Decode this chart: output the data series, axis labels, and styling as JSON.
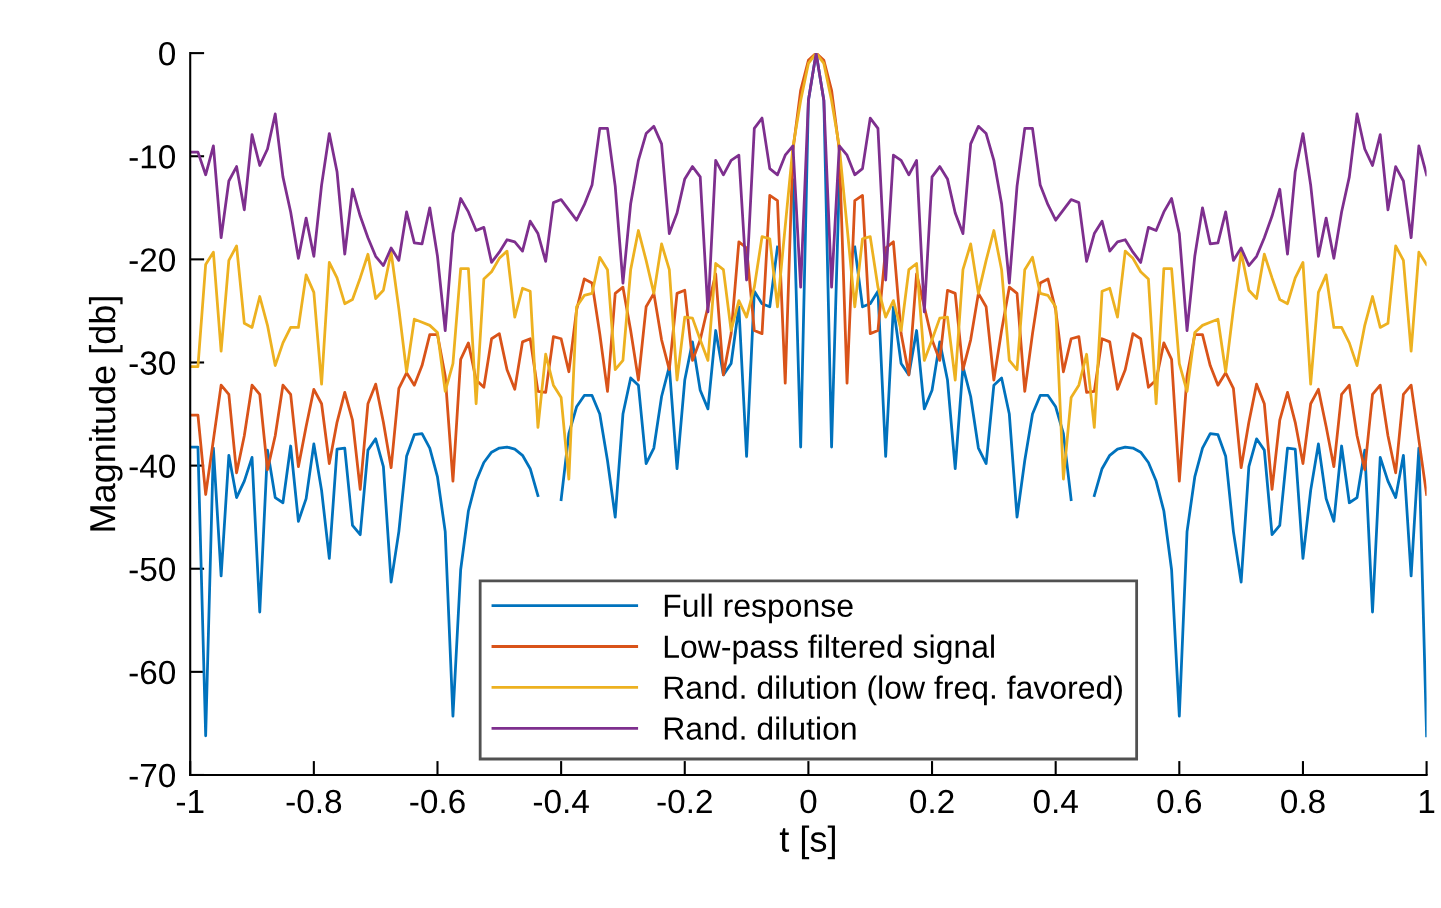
{
  "chart_data": {
    "type": "line",
    "xlabel": "t [s]",
    "ylabel": "Magnitude [db]",
    "x": [
      -1,
      -0.9875,
      -0.975,
      -0.9625,
      -0.95,
      -0.9375,
      -0.925,
      -0.9125,
      -0.9,
      -0.8875,
      -0.875,
      -0.8625,
      -0.85,
      -0.8375,
      -0.825,
      -0.8125,
      -0.8,
      -0.7875,
      -0.775,
      -0.7625,
      -0.75,
      -0.7375,
      -0.725,
      -0.7125,
      -0.7,
      -0.6875,
      -0.675,
      -0.6625,
      -0.65,
      -0.6375,
      -0.625,
      -0.6125,
      -0.6,
      -0.5875,
      -0.575,
      -0.5625,
      -0.55,
      -0.5375,
      -0.525,
      -0.5125,
      -0.5,
      -0.4875,
      -0.475,
      -0.4625,
      -0.45,
      -0.4375,
      -0.425,
      -0.4125,
      -0.4,
      -0.3875,
      -0.375,
      -0.3625,
      -0.35,
      -0.3375,
      -0.325,
      -0.3125,
      -0.3,
      -0.2875,
      -0.275,
      -0.2625,
      -0.25,
      -0.2375,
      -0.225,
      -0.2125,
      -0.2,
      -0.1875,
      -0.175,
      -0.1625,
      -0.15,
      -0.1375,
      -0.125,
      -0.1125,
      -0.1,
      -0.0875,
      -0.075,
      -0.0625,
      -0.05,
      -0.0375,
      -0.025,
      -0.0125,
      0,
      0.0125,
      0.025,
      0.0375,
      0.05,
      0.0625,
      0.075,
      0.0875,
      0.1,
      0.1125,
      0.125,
      0.1375,
      0.15,
      0.1625,
      0.175,
      0.1875,
      0.2,
      0.2125,
      0.225,
      0.2375,
      0.25,
      0.2625,
      0.275,
      0.2875,
      0.3,
      0.3125,
      0.325,
      0.3375,
      0.35,
      0.3625,
      0.375,
      0.3875,
      0.4,
      0.4125,
      0.425,
      0.4375,
      0.45,
      0.4625,
      0.475,
      0.4875,
      0.5,
      0.5125,
      0.525,
      0.5375,
      0.55,
      0.5625,
      0.575,
      0.5875,
      0.6,
      0.6125,
      0.625,
      0.6375,
      0.65,
      0.6625,
      0.675,
      0.6875,
      0.7,
      0.7125,
      0.725,
      0.7375,
      0.75,
      0.7625,
      0.775,
      0.7875,
      0.8,
      0.8125,
      0.825,
      0.8375,
      0.85,
      0.8625,
      0.875,
      0.8875,
      0.9,
      0.9125,
      0.925,
      0.9375,
      0.95,
      0.9625,
      0.975,
      0.9875,
      1
    ],
    "series": [
      {
        "name": "Full response",
        "color": "#0072bd",
        "values": [
          -38.2,
          -38.2,
          -66.2,
          -38.3,
          -50.7,
          -39.0,
          -43.1,
          -41.5,
          -39.2,
          -54.2,
          -38.5,
          -43.1,
          -43.6,
          -38.1,
          -45.4,
          -43.2,
          -37.9,
          -42.4,
          -49.0,
          -38.4,
          -38.3,
          -45.8,
          -46.7,
          -38.5,
          -37.4,
          -40.1,
          -51.3,
          -46.4,
          -39.1,
          -37.0,
          -36.9,
          -38.3,
          -41.1,
          -46.4,
          -64.3,
          -50.1,
          -44.4,
          -41.5,
          -39.7,
          -38.7,
          -38.3,
          -38.2,
          -38.4,
          -39.0,
          -40.3,
          -42.9,
          null,
          null,
          -43.3,
          -36.9,
          -34.3,
          -33.2,
          -33.2,
          -35.0,
          -39.5,
          -45.0,
          -35.0,
          -31.5,
          -32.2,
          -39.8,
          -38.3,
          -33.3,
          -30.4,
          -40.3,
          -31.7,
          -28.0,
          -32.7,
          -34.5,
          -26.9,
          -31.2,
          -30.1,
          -24.6,
          -39.1,
          -23.1,
          -24.3,
          -24.6,
          -18.8,
          null,
          -12.3,
          -38.2,
          -4.6,
          0,
          -4.6,
          -38.2,
          -12.3,
          null,
          -18.8,
          -24.6,
          -24.3,
          -23.1,
          -39.1,
          -24.6,
          -30.1,
          -31.2,
          -26.9,
          -34.5,
          -32.7,
          -28.0,
          -31.7,
          -40.3,
          -30.4,
          -33.3,
          -38.3,
          -39.8,
          -32.2,
          -31.5,
          -35.0,
          -45.0,
          -39.5,
          -35.0,
          -33.2,
          -33.2,
          -34.3,
          -36.9,
          -43.3,
          null,
          null,
          -42.9,
          -40.3,
          -39.0,
          -38.4,
          -38.2,
          -38.3,
          -38.7,
          -39.7,
          -41.5,
          -44.4,
          -50.1,
          -64.3,
          -46.4,
          -41.1,
          -38.3,
          -36.9,
          -37.0,
          -39.1,
          -46.4,
          -51.3,
          -40.1,
          -37.4,
          -38.5,
          -46.7,
          -45.8,
          -38.3,
          -38.4,
          -49.0,
          -42.4,
          -37.9,
          -43.2,
          -45.4,
          -38.1,
          -43.6,
          -43.1,
          -38.5,
          -54.2,
          -39.2,
          -41.5,
          -43.1,
          -39.0,
          -50.7,
          -38.3,
          -66.2
        ]
      },
      {
        "name": "Low-pass filtered signal",
        "color": "#d95319",
        "values": [
          -35.1,
          -35.1,
          -42.8,
          -37.5,
          -32.2,
          -33.1,
          -40.7,
          -37.1,
          -32.2,
          -33.1,
          -40.4,
          -37.1,
          -32.2,
          -33.1,
          -40.1,
          -36.2,
          -32.6,
          -34.0,
          -39.8,
          -35.8,
          -32.9,
          -35.6,
          -42.3,
          -34.0,
          -32.1,
          -35.8,
          -40.2,
          -32.5,
          -31.0,
          -32.2,
          -30.3,
          -27.3,
          -27.3,
          -31.3,
          -41.5,
          -29.7,
          -28.1,
          -31.7,
          -32.4,
          -27.7,
          -27.2,
          -30.7,
          -32.6,
          -28.0,
          -27.7,
          -32.8,
          -32.9,
          -27.5,
          -27.7,
          -30.9,
          -24.9,
          -21.9,
          -22.3,
          -27.2,
          -32.8,
          -23.3,
          -22.7,
          -26.9,
          -31.7,
          -24.6,
          -23.3,
          -27.8,
          -30.7,
          -23.3,
          -23.0,
          -29.8,
          -27.8,
          -24.6,
          -21.4,
          -31.2,
          -27.2,
          -18.3,
          -18.9,
          -26.9,
          -27.2,
          -13.8,
          -14.3,
          -32.0,
          -9.4,
          -3.6,
          -0.7,
          0,
          -0.7,
          -3.6,
          -9.4,
          -32.0,
          -14.3,
          -13.8,
          -27.2,
          -26.9,
          -18.9,
          -18.3,
          -27.2,
          -31.2,
          -21.4,
          -24.6,
          -27.8,
          -29.8,
          -23.0,
          -23.3,
          -30.7,
          -27.8,
          -23.3,
          -24.6,
          -31.7,
          -26.9,
          -22.7,
          -23.3,
          -32.8,
          -27.2,
          -22.3,
          -21.9,
          -24.9,
          -30.9,
          -27.7,
          -27.5,
          -32.9,
          -32.8,
          -27.7,
          -28.0,
          -32.6,
          -30.7,
          -27.2,
          -27.7,
          -32.4,
          -31.7,
          -28.1,
          -29.7,
          -41.5,
          -31.3,
          -27.3,
          -27.3,
          -30.3,
          -32.2,
          -31.0,
          -32.5,
          -40.2,
          -35.8,
          -32.1,
          -34.0,
          -42.3,
          -35.6,
          -32.9,
          -35.8,
          -39.8,
          -34.0,
          -32.6,
          -36.2,
          -40.1,
          -33.1,
          -32.2,
          -37.1,
          -40.4,
          -33.1,
          -32.2,
          -37.1,
          -40.7,
          -33.1,
          -32.2,
          -37.5,
          -42.8
        ]
      },
      {
        "name": "Rand. dilution (low freq. favored)",
        "color": "#edb120",
        "values": [
          -30.4,
          -30.4,
          -20.5,
          -19.3,
          -28.9,
          -20.1,
          -18.7,
          -26.2,
          -26.6,
          -23.6,
          -26.4,
          -30.3,
          -28.1,
          -26.6,
          -26.6,
          -21.5,
          -23.2,
          -32.1,
          -20.3,
          -21.8,
          -24.3,
          -23.9,
          -21.8,
          -19.5,
          -23.8,
          -23.0,
          -19.3,
          -24.8,
          -30.9,
          -25.8,
          -26.1,
          -26.4,
          -27.1,
          -32.8,
          -30.1,
          -20.9,
          -20.9,
          -34.0,
          -21.9,
          -21.2,
          -19.9,
          -19.2,
          -25.6,
          -22.8,
          -23.1,
          -36.3,
          -29.2,
          -32.2,
          -33.4,
          -41.3,
          -24.6,
          -23.5,
          -23.3,
          -19.8,
          -21.0,
          -30.7,
          -29.8,
          -21.0,
          -17.2,
          -20.1,
          -23.3,
          -18.5,
          -21.0,
          -31.7,
          -25.6,
          -25.7,
          -27.8,
          -29.8,
          -20.4,
          -21.0,
          -26.9,
          -24.0,
          -25.6,
          -22.7,
          -17.8,
          -18.0,
          -24.6,
          -16.8,
          -9.1,
          -4.6,
          -1.0,
          0,
          -1.0,
          -4.6,
          -9.1,
          -16.8,
          -24.6,
          -18.0,
          -17.8,
          -22.7,
          -25.6,
          -24.0,
          -26.9,
          -21.0,
          -20.4,
          -29.8,
          -27.8,
          -25.7,
          -25.6,
          -31.7,
          -21.0,
          -18.5,
          -23.3,
          -20.1,
          -17.2,
          -21.0,
          -29.8,
          -30.7,
          -21.0,
          -19.8,
          -23.3,
          -23.5,
          -24.6,
          -41.3,
          -33.4,
          -32.2,
          -29.2,
          -36.3,
          -23.1,
          -22.8,
          -25.6,
          -19.2,
          -19.9,
          -21.2,
          -21.9,
          -34.0,
          -20.9,
          -20.9,
          -30.1,
          -32.8,
          -27.1,
          -26.4,
          -26.1,
          -25.8,
          -30.9,
          -24.8,
          -19.3,
          -23.0,
          -23.8,
          -19.5,
          -21.8,
          -23.9,
          -24.3,
          -21.8,
          -20.3,
          -32.1,
          -23.2,
          -21.5,
          -26.6,
          -26.6,
          -28.1,
          -30.3,
          -26.4,
          -23.6,
          -26.6,
          -26.2,
          -18.7,
          -20.1,
          -28.9,
          -19.3,
          -20.5
        ]
      },
      {
        "name": "Rand. dilution",
        "color": "#7e2f8e",
        "values": [
          -9.6,
          -9.6,
          -11.8,
          -9.0,
          -17.9,
          -12.4,
          -11.0,
          -15.2,
          -7.9,
          -10.9,
          -9.3,
          -5.9,
          -12.0,
          -15.4,
          -19.9,
          -16.0,
          -19.7,
          -12.8,
          -7.8,
          -11.5,
          -19.5,
          -13.2,
          -15.8,
          -17.9,
          -19.7,
          -20.6,
          -18.9,
          -20.1,
          -15.4,
          -18.4,
          -18.5,
          -15.0,
          -19.7,
          -26.9,
          -17.5,
          -14.1,
          -15.4,
          -17.2,
          -16.9,
          -20.3,
          -19.3,
          -18.1,
          -18.3,
          -19.2,
          -16.3,
          -17.5,
          -20.2,
          -14.5,
          -14.2,
          -15.2,
          -16.2,
          -14.7,
          -12.8,
          -7.3,
          -7.3,
          -12.9,
          -22.3,
          -14.6,
          -10.4,
          -7.8,
          -7.1,
          -8.8,
          -17.5,
          -15.5,
          -12.2,
          -11.0,
          -12.0,
          -25.1,
          -10.4,
          -11.8,
          -10.4,
          -9.9,
          -22.0,
          -7.3,
          -6.3,
          -11.2,
          -11.8,
          -9.9,
          -9.0,
          -22.7,
          -4.6,
          0,
          -4.6,
          -22.7,
          -9.0,
          -9.9,
          -11.8,
          -11.2,
          -6.3,
          -7.3,
          -22.0,
          -9.9,
          -10.4,
          -11.8,
          -10.4,
          -25.1,
          -12.0,
          -11.0,
          -12.2,
          -15.5,
          -17.5,
          -8.8,
          -7.1,
          -7.8,
          -10.4,
          -14.6,
          -22.3,
          -12.9,
          -7.3,
          -7.3,
          -12.8,
          -14.7,
          -16.2,
          -15.2,
          -14.2,
          -14.5,
          -20.2,
          -17.5,
          -16.3,
          -19.2,
          -18.3,
          -18.1,
          -19.3,
          -20.3,
          -16.9,
          -17.2,
          -15.4,
          -14.1,
          -17.5,
          -26.9,
          -19.7,
          -15.0,
          -18.5,
          -18.4,
          -15.4,
          -20.1,
          -18.9,
          -20.6,
          -19.7,
          -17.9,
          -15.8,
          -13.2,
          -19.5,
          -11.5,
          -7.8,
          -12.8,
          -19.7,
          -16.0,
          -19.9,
          -15.4,
          -12.0,
          -5.9,
          -9.3,
          -10.9,
          -7.9,
          -15.2,
          -11.0,
          -12.4,
          -17.9,
          -9.0,
          -11.8
        ]
      }
    ],
    "xlim": [
      -1,
      1
    ],
    "xticks": [
      -1,
      -0.8,
      -0.6,
      -0.4,
      -0.2,
      0,
      0.2,
      0.4,
      0.6,
      0.8,
      1
    ],
    "ylim": [
      -70,
      0
    ],
    "yticks": [
      -70,
      -60,
      -50,
      -40,
      -30,
      -20,
      -10,
      0
    ],
    "grid": false,
    "legend": "bottom",
    "marker": "none",
    "line_style": "solid"
  }
}
